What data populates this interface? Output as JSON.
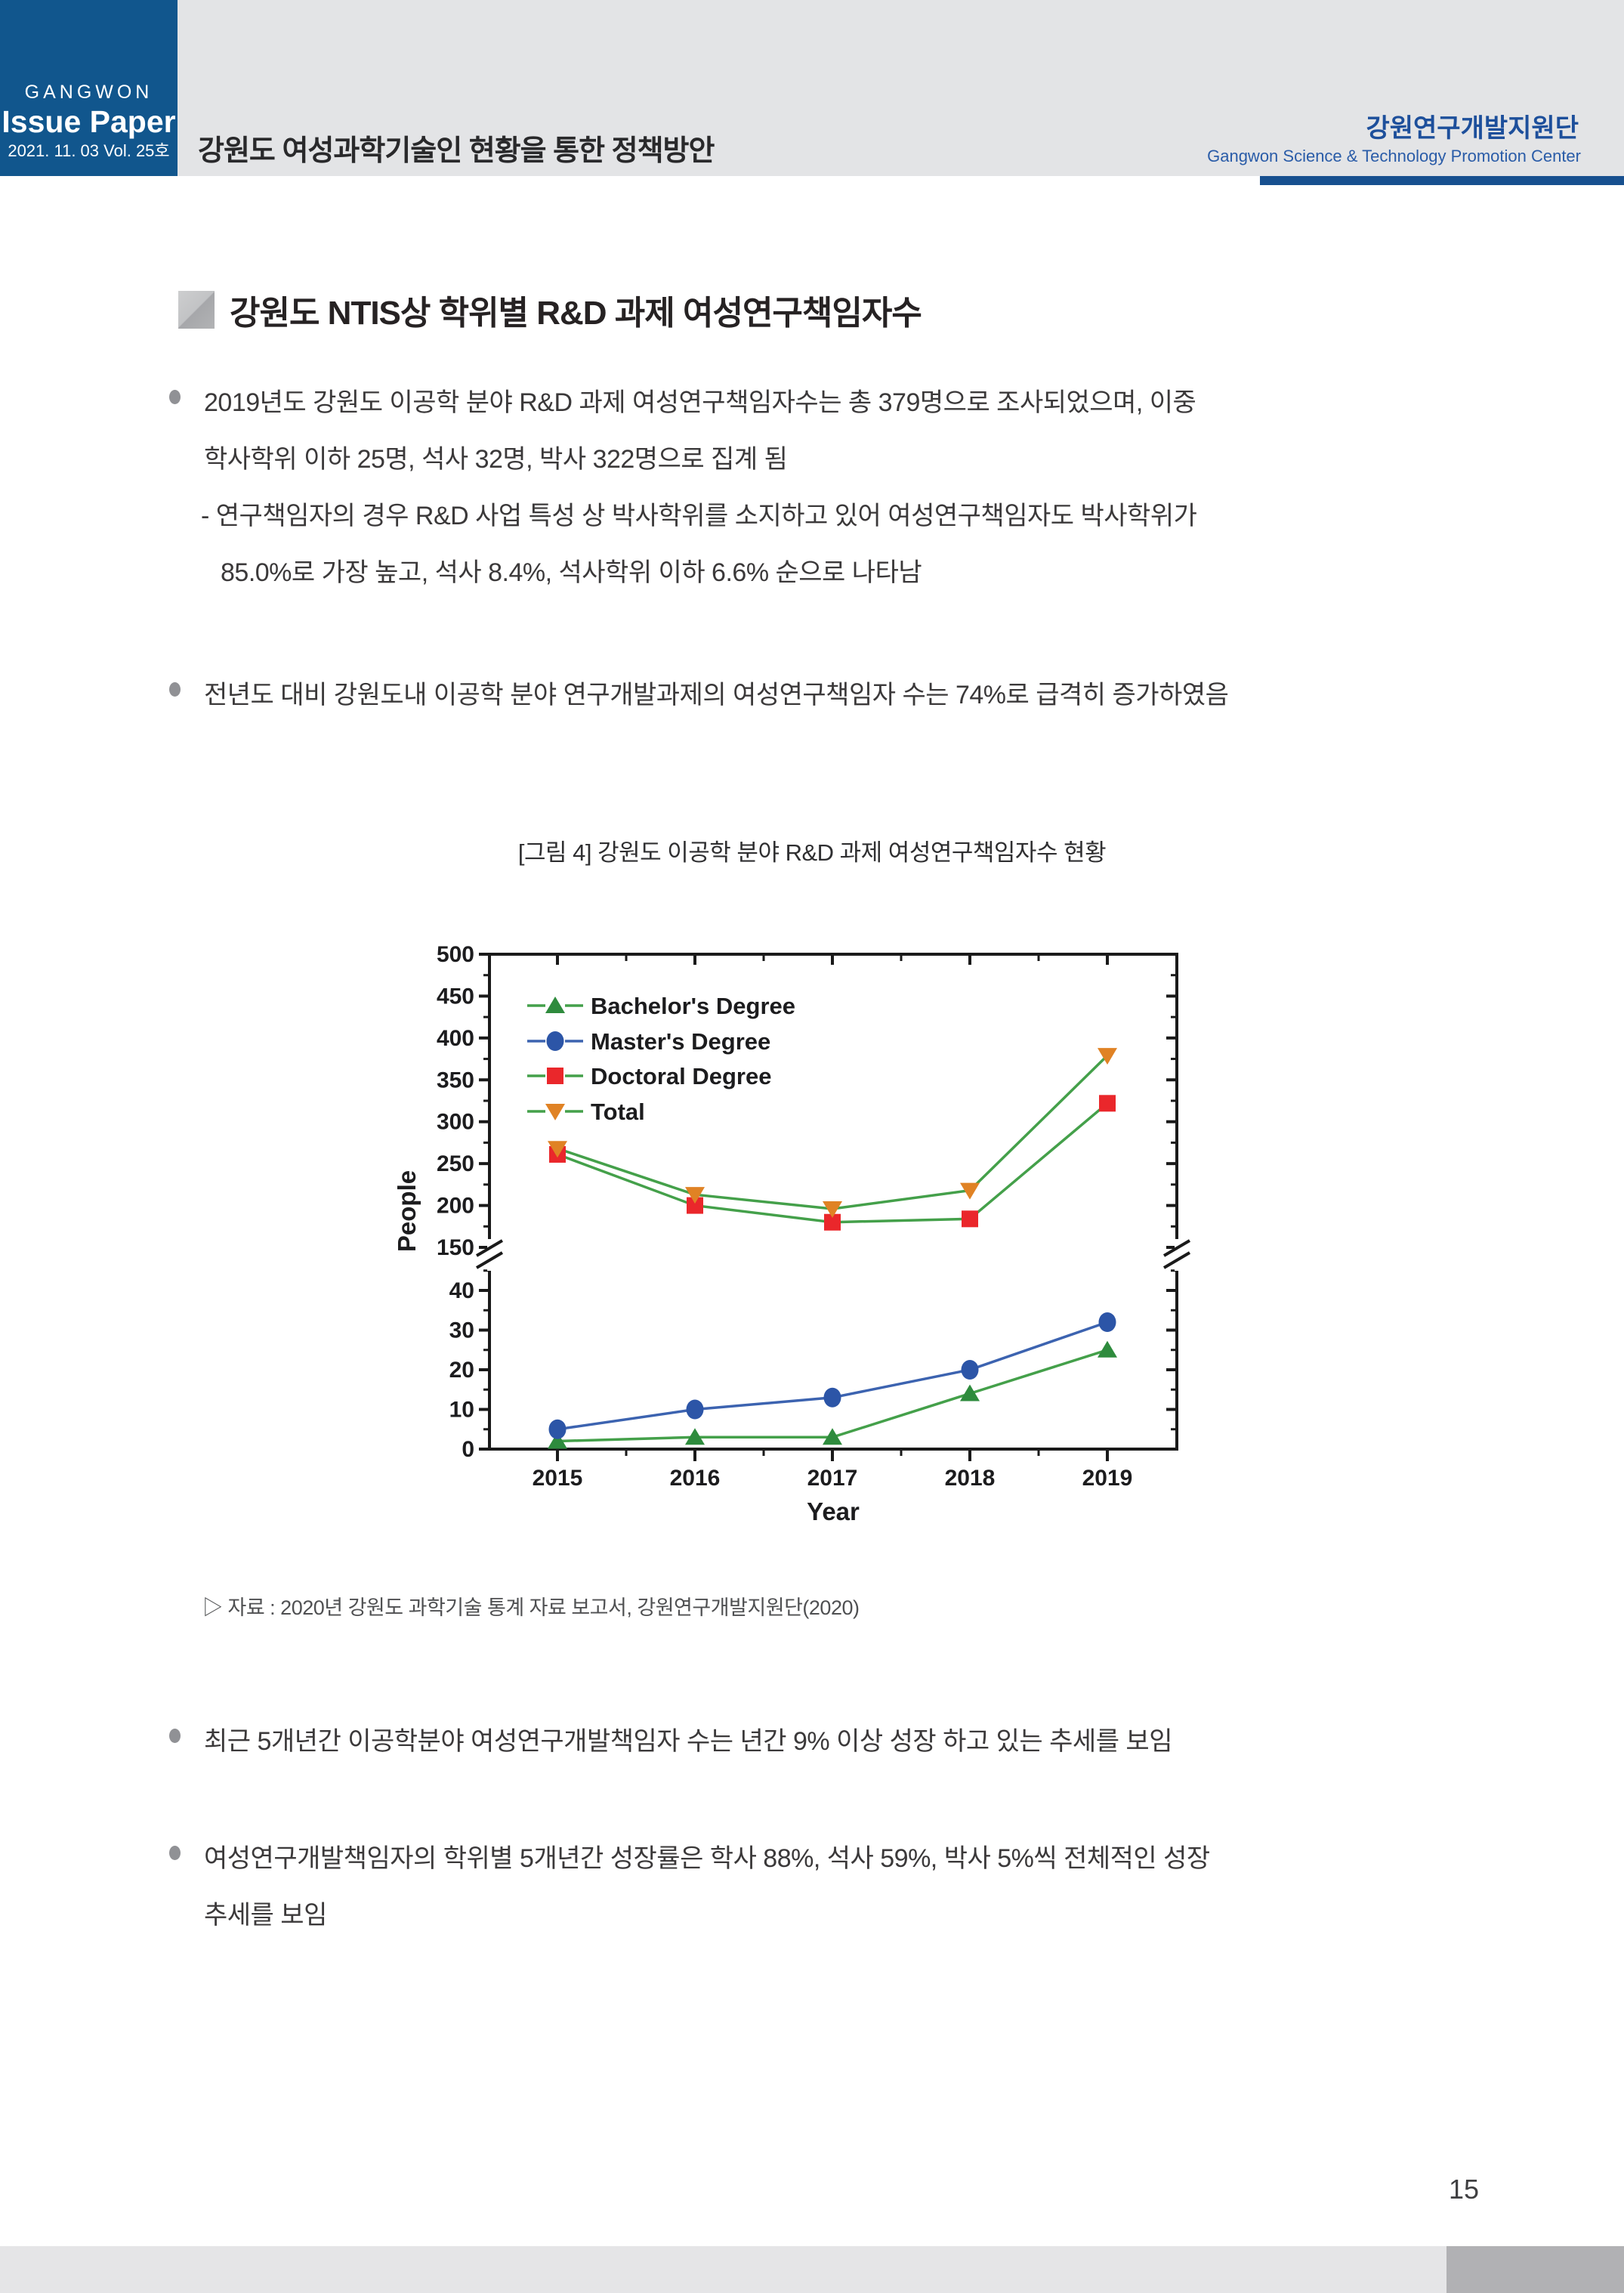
{
  "header": {
    "brand_org": "GANGWON",
    "brand_product": "Issue Paper",
    "brand_issue": "2021. 11. 03  Vol. 25호",
    "doc_title": "강원도 여성과학기술인 현황을 통한 정책방안",
    "org_kr": "강원연구개발지원단",
    "org_en": "Gangwon Science & Technology Promotion Center"
  },
  "section": {
    "title": "강원도 NTIS상 학위별 R&D 과제 여성연구책임자수"
  },
  "bullets": {
    "b1_line1": "2019년도 강원도 이공학 분야 R&D 과제 여성연구책임자수는 총 379명으로 조사되었으며, 이중",
    "b1_line2": "학사학위 이하 25명, 석사 32명, 박사 322명으로 집계 됨",
    "b1_sub1": "- 연구책임자의 경우 R&D 사업 특성 상 박사학위를 소지하고 있어 여성연구책임자도 박사학위가",
    "b1_sub2": "85.0%로 가장 높고, 석사 8.4%, 석사학위 이하 6.6% 순으로 나타남",
    "b2": "전년도 대비 강원도내 이공학 분야 연구개발과제의 여성연구책임자 수는 74%로 급격히 증가하였음",
    "b3": "최근 5개년간 이공학분야 여성연구개발책임자 수는 년간 9% 이상 성장 하고 있는 추세를 보임",
    "b4_line1": "여성연구개발책임자의 학위별 5개년간 성장률은 학사 88%, 석사 59%, 박사 5%씩 전체적인 성장",
    "b4_line2": "추세를 보임"
  },
  "figure": {
    "caption": "[그림 4] 강원도 이공학 분야 R&D 과제 여성연구책임자수 현황",
    "source": "▷ 자료 : 2020년 강원도 과학기술 통계 자료 보고서, 강원연구개발지원단(2020)"
  },
  "chart_data": {
    "type": "line",
    "title": "",
    "xlabel": "Year",
    "ylabel": "People",
    "x": [
      2015,
      2016,
      2017,
      2018,
      2019
    ],
    "broken_y_axis": {
      "upper": {
        "range": [
          150,
          500
        ],
        "ticks": [
          500,
          450,
          400,
          350,
          300,
          250,
          200,
          150
        ],
        "minor_ticks": [
          475,
          425,
          375,
          325,
          275,
          225,
          175
        ]
      },
      "lower": {
        "range": [
          0,
          47
        ],
        "ticks": [
          40,
          30,
          20,
          10,
          0
        ],
        "minor_ticks": [
          45,
          35,
          25,
          15,
          5
        ]
      }
    },
    "grid": false,
    "legend_position": "top-left",
    "series": [
      {
        "name": "Bachelor's Degree",
        "axis": "lower",
        "marker": "triangle-up",
        "marker_color": "#2e8b3d",
        "line_color": "#44a04a",
        "values": [
          2,
          3,
          3,
          14,
          25
        ]
      },
      {
        "name": "Master's Degree",
        "axis": "lower",
        "marker": "circle",
        "marker_color": "#2c55a7",
        "line_color": "#3c63b0",
        "values": [
          5,
          10,
          13,
          20,
          32
        ]
      },
      {
        "name": "Doctoral Degree",
        "axis": "upper",
        "marker": "square",
        "marker_color": "#ea272b",
        "line_color": "#44a04a",
        "values": [
          261,
          200,
          180,
          184,
          322
        ]
      },
      {
        "name": "Total",
        "axis": "upper",
        "marker": "triangle-down",
        "marker_color": "#e08224",
        "line_color": "#44a04a",
        "values": [
          268,
          213,
          196,
          218,
          379
        ]
      }
    ]
  },
  "page": {
    "number": "15"
  },
  "colors": {
    "brand_blue": "#11568d",
    "header_gray": "#e3e4e6",
    "accent_bar_blue": "#17508f",
    "org_text_blue": "#1d4f9b",
    "axis_black": "#1a1a1a",
    "footer_light": "#e5e5e7",
    "footer_dark": "#b1b1b4"
  }
}
